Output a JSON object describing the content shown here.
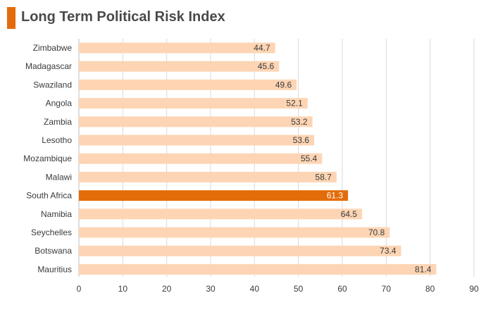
{
  "header": {
    "title": "Long Term Political Risk Index",
    "accent_color": "#e36c0a"
  },
  "chart_data": {
    "type": "bar",
    "orientation": "horizontal",
    "title": "Long Term Political Risk Index",
    "xlabel": "",
    "ylabel": "",
    "xlim": [
      0,
      90
    ],
    "ticks": [
      0,
      10,
      20,
      30,
      40,
      50,
      60,
      70,
      80,
      90
    ],
    "grid": true,
    "categories": [
      "Zimbabwe",
      "Madagascar",
      "Swaziland",
      "Angola",
      "Zambia",
      "Lesotho",
      "Mozambique",
      "Malawi",
      "South Africa",
      "Namibia",
      "Seychelles",
      "Botswana",
      "Mauritius"
    ],
    "values": [
      44.7,
      45.6,
      49.6,
      52.1,
      53.2,
      53.6,
      55.4,
      58.7,
      61.3,
      64.5,
      70.8,
      73.4,
      81.4
    ],
    "value_labels": [
      "44.7",
      "45.6",
      "49.6",
      "52.1",
      "53.2",
      "53.6",
      "55.4",
      "58.7",
      "61.3",
      "64.5",
      "70.8",
      "73.4",
      "81.4"
    ],
    "highlight": "South Africa",
    "colors": {
      "bar": "#fdd5b4",
      "highlight_bar": "#e36c0a",
      "label": "#3a3a3a",
      "highlight_label": "#ffffff",
      "grid": "#d9d9d9",
      "axis": "#bfbfbf"
    }
  }
}
